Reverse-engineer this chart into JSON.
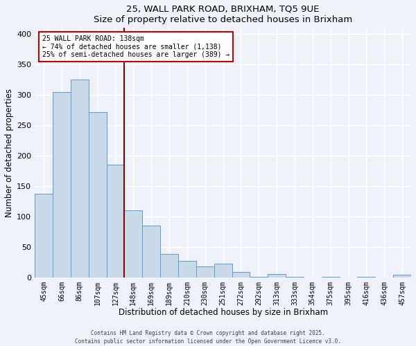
{
  "title": "25, WALL PARK ROAD, BRIXHAM, TQ5 9UE",
  "subtitle": "Size of property relative to detached houses in Brixham",
  "xlabel": "Distribution of detached houses by size in Brixham",
  "ylabel": "Number of detached properties",
  "bar_labels": [
    "45sqm",
    "66sqm",
    "86sqm",
    "107sqm",
    "127sqm",
    "148sqm",
    "169sqm",
    "189sqm",
    "210sqm",
    "230sqm",
    "251sqm",
    "272sqm",
    "292sqm",
    "313sqm",
    "333sqm",
    "354sqm",
    "375sqm",
    "395sqm",
    "416sqm",
    "436sqm",
    "457sqm"
  ],
  "bar_values": [
    137,
    305,
    325,
    272,
    185,
    110,
    85,
    38,
    27,
    18,
    22,
    9,
    1,
    5,
    1,
    0,
    1,
    0,
    1,
    0,
    4
  ],
  "bar_color": "#c9d9e8",
  "bar_edge_color": "#5b9bd5",
  "vline_x_index": 5,
  "vline_color": "#8b0000",
  "annotation_text": "25 WALL PARK ROAD: 138sqm\n← 74% of detached houses are smaller (1,138)\n25% of semi-detached houses are larger (389) →",
  "annotation_box_color": "#ffffff",
  "annotation_box_edge_color": "#cc0000",
  "ylim": [
    0,
    410
  ],
  "yticks": [
    0,
    50,
    100,
    150,
    200,
    250,
    300,
    350,
    400
  ],
  "background_color": "#eef2f8",
  "grid_color": "#ffffff",
  "footer_line1": "Contains HM Land Registry data © Crown copyright and database right 2025.",
  "footer_line2": "Contains public sector information licensed under the Open Government Licence v3.0."
}
